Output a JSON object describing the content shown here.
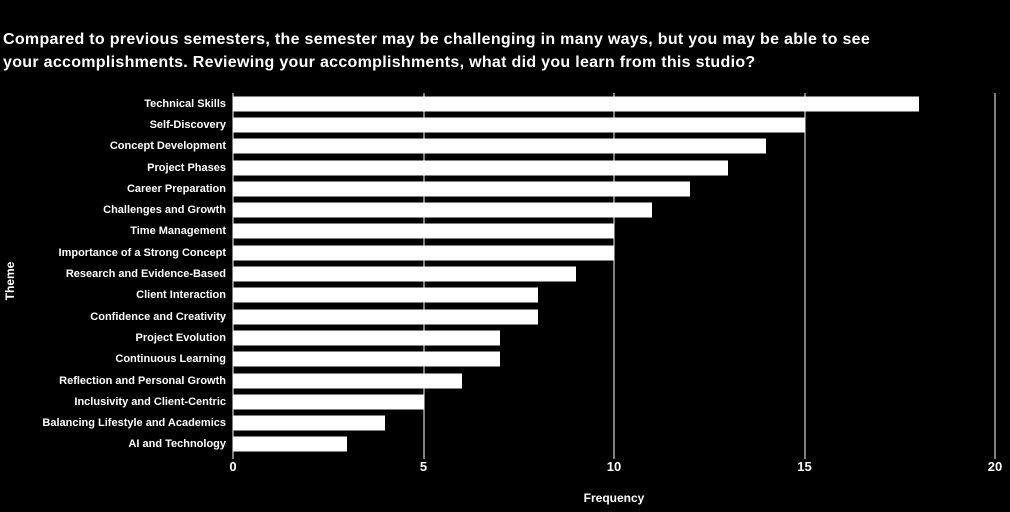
{
  "chart_data": {
    "type": "bar",
    "orientation": "horizontal",
    "title_lines": [
      "Compared to previous semesters, the semester may be challenging in many ways, but you may be able to see",
      "your accomplishments. Reviewing your accomplishments, what did you learn from this studio?"
    ],
    "categories": [
      "Technical Skills",
      "Self-Discovery",
      "Concept Development",
      "Project Phases",
      "Career Preparation",
      "Challenges and Growth",
      "Time Management",
      "Importance of a Strong Concept",
      "Research and Evidence-Based",
      "Client Interaction",
      "Confidence and Creativity",
      "Project Evolution",
      "Continuous Learning",
      "Reflection and Personal Growth",
      "Inclusivity and Client-Centric",
      "Balancing Lifestyle and Academics",
      "AI and Technology"
    ],
    "values": [
      18,
      15,
      14,
      13,
      12,
      11,
      10,
      10,
      9,
      8,
      8,
      7,
      7,
      6,
      5,
      4,
      3
    ],
    "xlabel": "Frequency",
    "ylabel": "Theme",
    "xlim": [
      0,
      20
    ],
    "xticks": [
      0,
      5,
      10,
      15,
      20
    ],
    "grid": true,
    "legend": null,
    "colors": {
      "background": "#000000",
      "bar": "#ffffff",
      "text": "#ffffff",
      "gridline": "#ffffff"
    }
  }
}
